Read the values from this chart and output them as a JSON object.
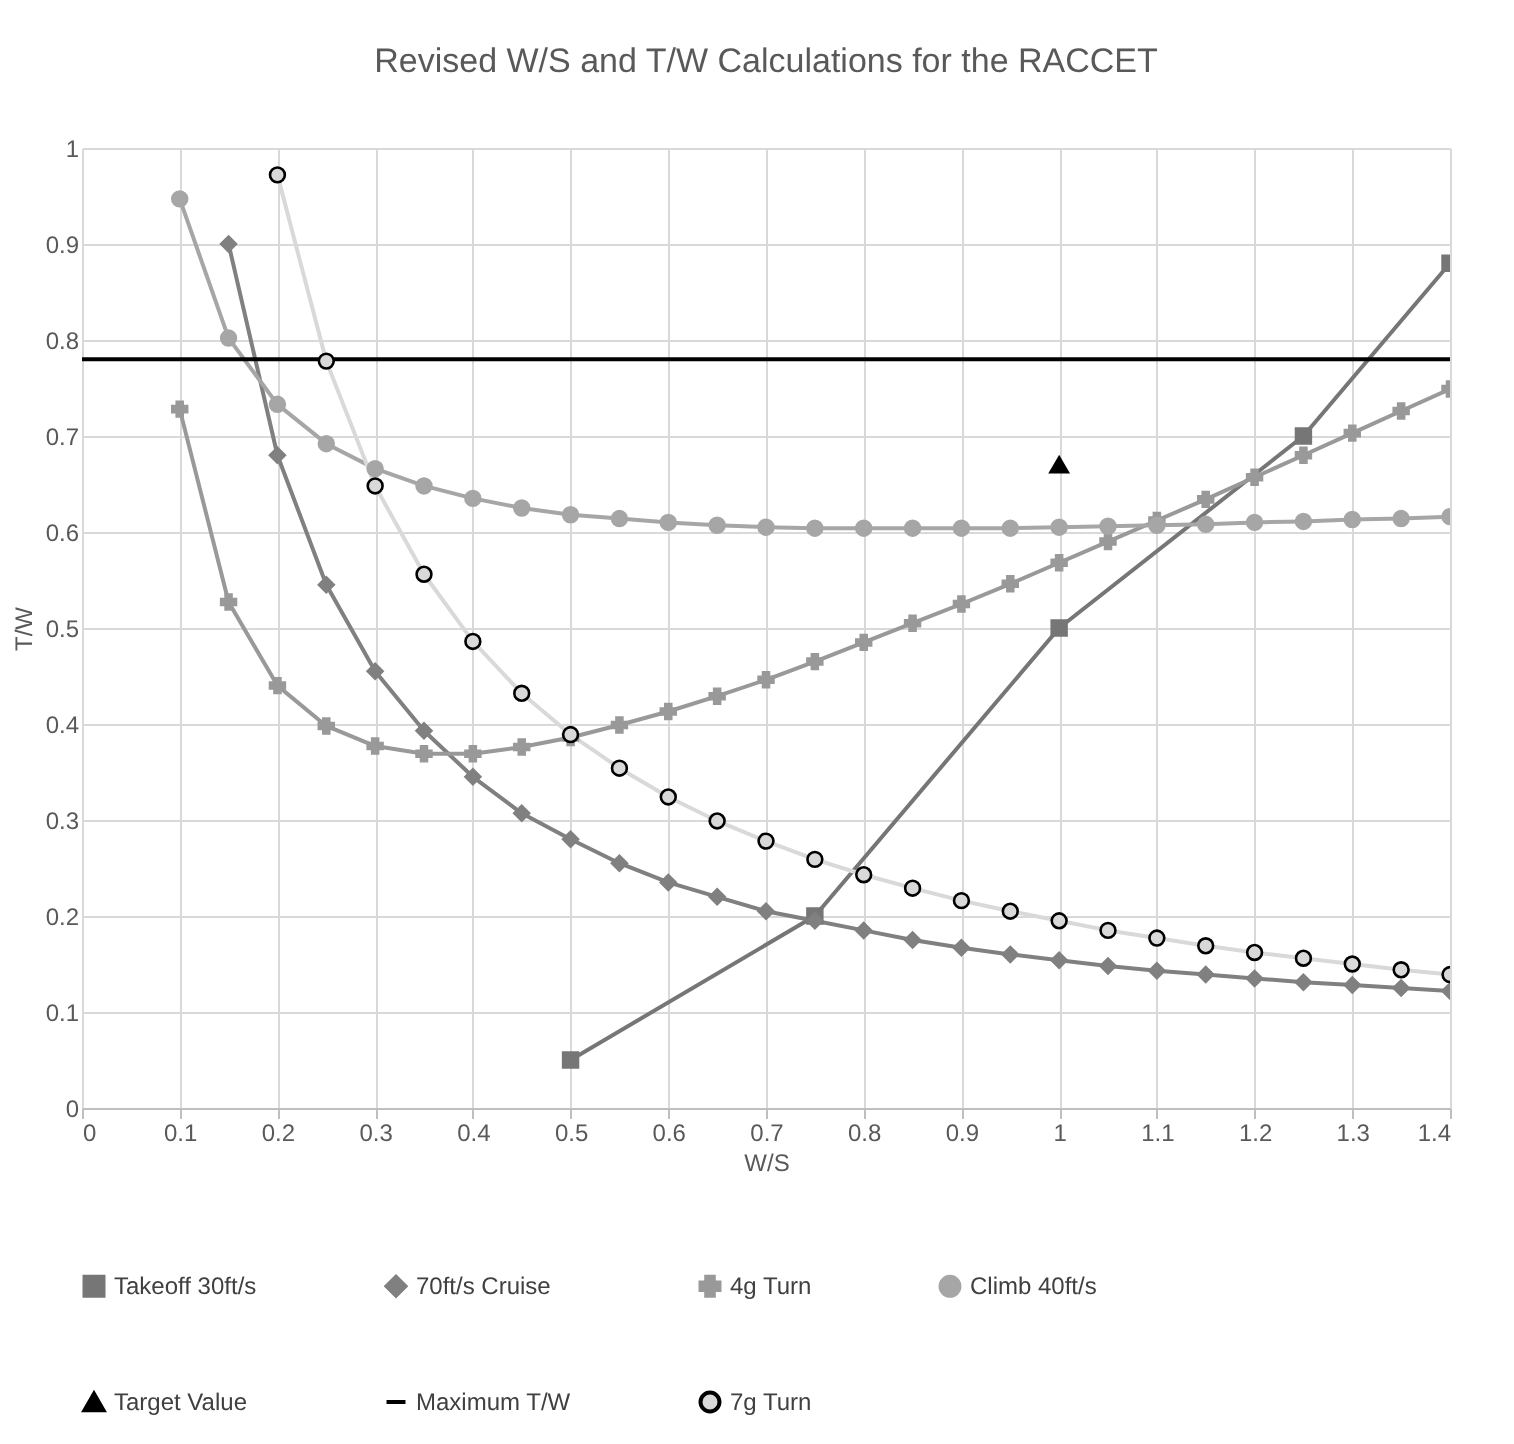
{
  "chart_data": {
    "type": "line",
    "title": "Revised W/S and T/W Calculations for the RACCET",
    "xlabel": "W/S",
    "ylabel": "T/W",
    "xlim": [
      0,
      1.4
    ],
    "xticks": [
      0,
      0.1,
      0.2,
      0.3,
      0.4,
      0.5,
      0.6,
      0.7,
      0.8,
      0.9,
      1,
      1.1,
      1.2,
      1.3,
      1.4
    ],
    "ylim": [
      0,
      1
    ],
    "yticks": [
      0,
      0.1,
      0.2,
      0.3,
      0.4,
      0.5,
      0.6,
      0.7,
      0.8,
      0.9,
      1
    ],
    "grid": true,
    "legend": "bottom",
    "series": [
      {
        "name": "Takeoff 30ft/s",
        "type": "line",
        "marker": "square",
        "color": "#767676",
        "x": [
          0.5,
          0.75,
          1,
          1.25,
          1.4
        ],
        "values": [
          0.05,
          0.2,
          0.5,
          0.7,
          0.88
        ]
      },
      {
        "name": "70ft/s Cruise",
        "type": "line",
        "marker": "diamond",
        "color": "#808080",
        "x": [
          0.15,
          0.2,
          0.25,
          0.3,
          0.35,
          0.4,
          0.45,
          0.5,
          0.55,
          0.6,
          0.65,
          0.7,
          0.75,
          0.8,
          0.85,
          0.9,
          0.95,
          1,
          1.05,
          1.1,
          1.15,
          1.2,
          1.25,
          1.3,
          1.35,
          1.4
        ],
        "values": [
          0.9,
          0.68,
          0.545,
          0.455,
          0.393,
          0.345,
          0.307,
          0.28,
          0.255,
          0.235,
          0.22,
          0.205,
          0.195,
          0.185,
          0.175,
          0.167,
          0.16,
          0.154,
          0.148,
          0.143,
          0.139,
          0.135,
          0.131,
          0.128,
          0.125,
          0.122
        ]
      },
      {
        "name": "4g Turn",
        "type": "line",
        "marker": "cross",
        "color": "#999999",
        "x": [
          0.1,
          0.15,
          0.2,
          0.25,
          0.3,
          0.35,
          0.4,
          0.45,
          0.5,
          0.55,
          0.6,
          0.65,
          0.7,
          0.75,
          0.8,
          0.85,
          0.9,
          0.95,
          1,
          1.05,
          1.1,
          1.15,
          1.2,
          1.25,
          1.3,
          1.35,
          1.4
        ],
        "values": [
          0.728,
          0.527,
          0.44,
          0.398,
          0.377,
          0.369,
          0.369,
          0.376,
          0.386,
          0.399,
          0.413,
          0.429,
          0.446,
          0.465,
          0.485,
          0.505,
          0.525,
          0.546,
          0.568,
          0.59,
          0.612,
          0.634,
          0.657,
          0.68,
          0.703,
          0.726,
          0.749
        ]
      },
      {
        "name": "Climb 40ft/s",
        "type": "line",
        "marker": "circle",
        "color": "#a6a6a6",
        "x": [
          0.1,
          0.15,
          0.2,
          0.25,
          0.3,
          0.35,
          0.4,
          0.45,
          0.5,
          0.55,
          0.6,
          0.65,
          0.7,
          0.75,
          0.8,
          0.85,
          0.9,
          0.95,
          1,
          1.05,
          1.1,
          1.15,
          1.2,
          1.25,
          1.3,
          1.35,
          1.4
        ],
        "values": [
          0.947,
          0.802,
          0.733,
          0.692,
          0.666,
          0.648,
          0.635,
          0.625,
          0.618,
          0.614,
          0.61,
          0.607,
          0.605,
          0.604,
          0.604,
          0.604,
          0.604,
          0.604,
          0.605,
          0.606,
          0.607,
          0.608,
          0.61,
          0.611,
          0.613,
          0.614,
          0.616
        ]
      },
      {
        "name": "Target Value",
        "type": "scatter",
        "marker": "triangle",
        "color": "#000000",
        "x": [
          1
        ],
        "values": [
          0.67
        ]
      },
      {
        "name": "Maximum T/W",
        "type": "line",
        "marker": "none",
        "color": "#000000",
        "x": [
          0,
          1.4
        ],
        "values": [
          0.78,
          0.78
        ]
      },
      {
        "name": "7g Turn",
        "type": "line",
        "marker": "circle",
        "color": "#d9d9d9",
        "x": [
          0.2,
          0.25,
          0.3,
          0.35,
          0.4,
          0.45,
          0.5,
          0.55,
          0.6,
          0.65,
          0.7,
          0.75,
          0.8,
          0.85,
          0.9,
          0.95,
          1,
          1.05,
          1.1,
          1.15,
          1.2,
          1.25,
          1.3,
          1.35,
          1.4
        ],
        "values": [
          0.972,
          0.778,
          0.648,
          0.556,
          0.486,
          0.432,
          0.389,
          0.354,
          0.324,
          0.299,
          0.278,
          0.259,
          0.243,
          0.229,
          0.216,
          0.205,
          0.195,
          0.185,
          0.177,
          0.169,
          0.162,
          0.156,
          0.15,
          0.144,
          0.139
        ]
      }
    ]
  }
}
